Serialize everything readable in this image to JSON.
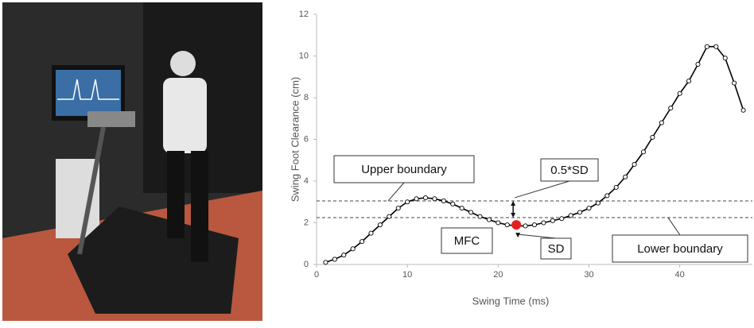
{
  "chart_data": {
    "type": "line",
    "x_label": "Swing Time (ms)",
    "y_label": "Swing Foot Clearance (cm)",
    "x": [
      1,
      2,
      3,
      4,
      5,
      6,
      7,
      8,
      9,
      10,
      11,
      12,
      13,
      14,
      15,
      16,
      17,
      18,
      19,
      20,
      21,
      22,
      23,
      24,
      25,
      26,
      27,
      28,
      29,
      30,
      31,
      32,
      33,
      34,
      35,
      36,
      37,
      38,
      39,
      40,
      41,
      42,
      43,
      44,
      45,
      46,
      47
    ],
    "series": [
      {
        "color": "#000000",
        "values": [
          0.1,
          0.25,
          0.45,
          0.75,
          1.1,
          1.5,
          1.9,
          2.3,
          2.7,
          3.0,
          3.15,
          3.2,
          3.15,
          3.05,
          2.9,
          2.7,
          2.5,
          2.3,
          2.15,
          2.0,
          1.9,
          1.85,
          1.85,
          1.9,
          2.0,
          2.1,
          2.2,
          2.35,
          2.5,
          2.7,
          2.95,
          3.3,
          3.7,
          4.2,
          4.8,
          5.4,
          6.1,
          6.8,
          7.5,
          8.2,
          8.8,
          9.6,
          10.45,
          10.45,
          9.9,
          8.7,
          7.4
        ]
      }
    ],
    "xlim": [
      0,
      48
    ],
    "xticks": [
      0,
      10,
      20,
      30,
      40
    ],
    "ylim": [
      0,
      12
    ],
    "yticks": [
      0,
      2,
      4,
      6,
      8,
      10,
      12
    ],
    "grid": false,
    "reference_lines": [
      {
        "value": 3.05,
        "label": "Upper boundary"
      },
      {
        "value": 2.25,
        "label": "Lower boundary"
      }
    ],
    "highlight": {
      "x": 22,
      "y": 1.9,
      "label": "MFC",
      "color": "#e32020"
    },
    "annotations": [
      "0.5*SD",
      "SD"
    ]
  }
}
